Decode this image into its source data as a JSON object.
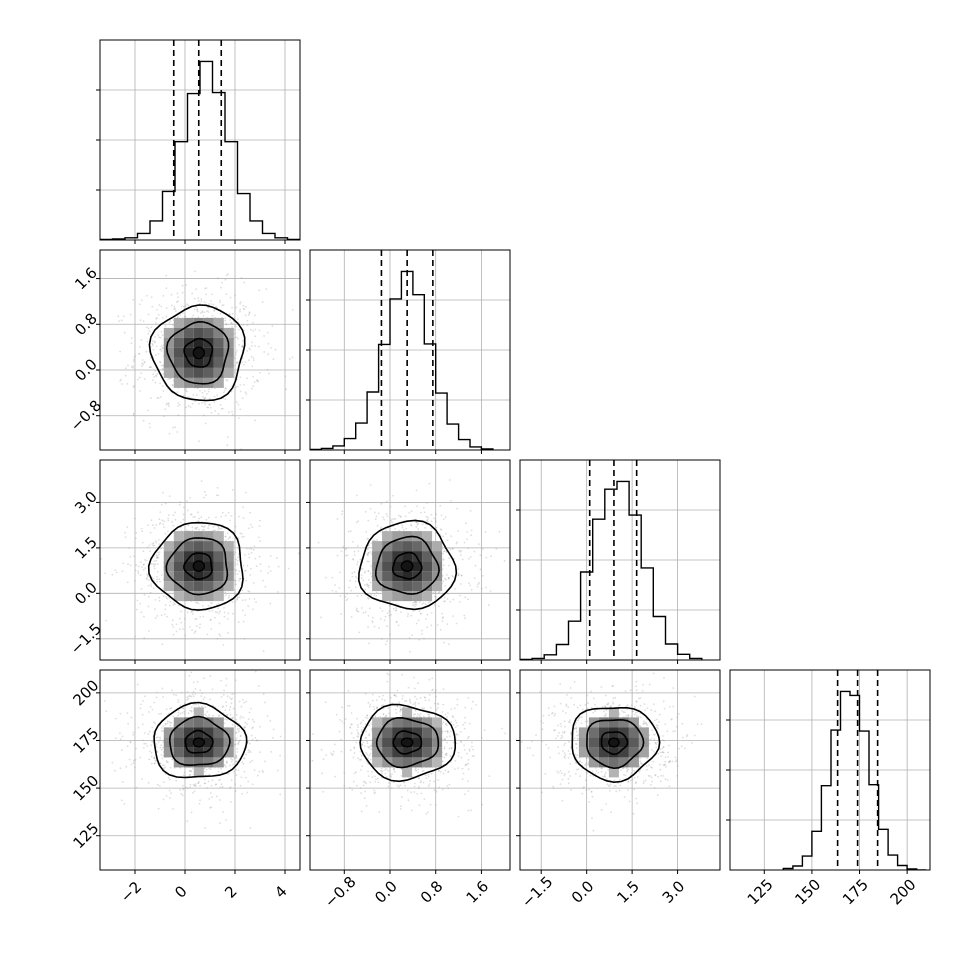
{
  "figure": {
    "kind": "corner plot",
    "colors": {
      "ink": "#000000",
      "grid": "#b0b0b0",
      "background": "#ffffff",
      "scatter": "#a0a0a0"
    }
  },
  "chart_data": [
    {
      "type": "histogram",
      "panel": "hist-param-1",
      "row": 0,
      "col": 0,
      "xlim": [
        -3.4,
        4.6
      ],
      "grid": true,
      "show_xtick_labels": false,
      "x_ticks": [
        {
          "v": -2,
          "label": "−2"
        },
        {
          "v": 0,
          "label": "0"
        },
        {
          "v": 2,
          "label": "2"
        },
        {
          "v": 4,
          "label": "4"
        }
      ],
      "bins": [
        -3.4,
        -2.9,
        -2.4,
        -1.9,
        -1.4,
        -0.9,
        -0.4,
        0.1,
        0.6,
        1.1,
        1.6,
        2.1,
        2.6,
        3.1,
        3.6,
        4.1,
        4.6
      ],
      "counts": [
        1,
        2,
        4,
        12,
        35,
        89,
        180,
        268,
        327,
        270,
        180,
        85,
        35,
        12,
        4,
        1
      ],
      "quantiles": [
        -0.45,
        0.55,
        1.45
      ]
    },
    {
      "type": "histogram",
      "panel": "hist-param-2",
      "row": 1,
      "col": 1,
      "xlim": [
        -1.4,
        2.1
      ],
      "grid": true,
      "show_xtick_labels": false,
      "x_ticks": [
        {
          "v": -0.8,
          "label": "−0.8"
        },
        {
          "v": 0.0,
          "label": "0.0"
        },
        {
          "v": 0.8,
          "label": "0.8"
        },
        {
          "v": 1.6,
          "label": "1.6"
        }
      ],
      "bins": [
        -1.4,
        -1.2,
        -1.0,
        -0.8,
        -0.6,
        -0.4,
        -0.2,
        0.0,
        0.2,
        0.4,
        0.6,
        0.8,
        1.0,
        1.2,
        1.4,
        1.6,
        1.8
      ],
      "counts": [
        1,
        3,
        8,
        22,
        52,
        112,
        204,
        292,
        345,
        300,
        205,
        110,
        50,
        20,
        6,
        2
      ],
      "quantiles": [
        -0.15,
        0.3,
        0.75
      ]
    },
    {
      "type": "histogram",
      "panel": "hist-param-3",
      "row": 2,
      "col": 2,
      "xlim": [
        -2.2,
        4.4
      ],
      "grid": true,
      "show_xtick_labels": false,
      "x_ticks": [
        {
          "v": -1.5,
          "label": "−1.5"
        },
        {
          "v": 0.0,
          "label": "0.0"
        },
        {
          "v": 1.5,
          "label": "1.5"
        },
        {
          "v": 3.0,
          "label": "3.0"
        }
      ],
      "bins": [
        -2.2,
        -1.8,
        -1.4,
        -1.0,
        -0.6,
        -0.2,
        0.2,
        0.6,
        1.0,
        1.4,
        1.8,
        2.2,
        2.6,
        3.0,
        3.4,
        3.8
      ],
      "counts": [
        1,
        3,
        10,
        30,
        75,
        170,
        272,
        330,
        345,
        280,
        178,
        84,
        31,
        11,
        3
      ],
      "quantiles": [
        0.1,
        0.9,
        1.65
      ]
    },
    {
      "type": "histogram",
      "panel": "hist-param-4",
      "row": 3,
      "col": 3,
      "xlim": [
        107,
        212
      ],
      "grid": true,
      "show_xtick_labels": true,
      "x_ticks": [
        {
          "v": 125,
          "label": "125"
        },
        {
          "v": 150,
          "label": "150"
        },
        {
          "v": 175,
          "label": "175"
        },
        {
          "v": 200,
          "label": "200"
        }
      ],
      "bins": [
        135,
        140,
        145,
        150,
        155,
        160,
        165,
        170,
        175,
        180,
        185,
        190,
        195,
        200,
        205,
        210
      ],
      "counts": [
        3,
        8,
        28,
        78,
        170,
        282,
        360,
        352,
        280,
        172,
        82,
        30,
        9,
        2,
        0
      ],
      "quantiles": [
        163.5,
        174,
        184.5
      ]
    },
    {
      "type": "scatter",
      "panel": "corner-2d-r1-c0",
      "row": 1,
      "col": 0,
      "xlim": [
        -3.4,
        4.6
      ],
      "ylim": [
        -1.4,
        2.1
      ],
      "grid": true,
      "x_ticks": [
        {
          "v": -2,
          "label": "−2"
        },
        {
          "v": 0,
          "label": "0"
        },
        {
          "v": 2,
          "label": "2"
        },
        {
          "v": 4,
          "label": "4"
        }
      ],
      "y_ticks": [
        {
          "v": -0.8,
          "label": "−0.8"
        },
        {
          "v": 0.0,
          "label": "0.0"
        },
        {
          "v": 0.8,
          "label": "0.8"
        },
        {
          "v": 1.6,
          "label": "1.6"
        }
      ],
      "center": [
        0.55,
        0.3
      ],
      "sd": [
        1.0,
        0.45
      ],
      "show_xtick_labels": false,
      "show_ytick_labels": true
    },
    {
      "type": "scatter",
      "panel": "corner-2d-r2-c0",
      "row": 2,
      "col": 0,
      "xlim": [
        -3.4,
        4.6
      ],
      "ylim": [
        -2.2,
        4.4
      ],
      "grid": true,
      "x_ticks": [
        {
          "v": -2,
          "label": "−2"
        },
        {
          "v": 0,
          "label": "0"
        },
        {
          "v": 2,
          "label": "2"
        },
        {
          "v": 4,
          "label": "4"
        }
      ],
      "y_ticks": [
        {
          "v": -1.5,
          "label": "−1.5"
        },
        {
          "v": 0.0,
          "label": "0.0"
        },
        {
          "v": 1.5,
          "label": "1.5"
        },
        {
          "v": 3.0,
          "label": "3.0"
        }
      ],
      "center": [
        0.55,
        0.9
      ],
      "sd": [
        1.0,
        0.78
      ],
      "show_xtick_labels": false,
      "show_ytick_labels": true
    },
    {
      "type": "scatter",
      "panel": "corner-2d-r2-c1",
      "row": 2,
      "col": 1,
      "xlim": [
        -1.4,
        2.1
      ],
      "ylim": [
        -2.2,
        4.4
      ],
      "grid": true,
      "x_ticks": [
        {
          "v": -0.8,
          "label": "−0.8"
        },
        {
          "v": 0.0,
          "label": "0.0"
        },
        {
          "v": 0.8,
          "label": "0.8"
        },
        {
          "v": 1.6,
          "label": "1.6"
        }
      ],
      "y_ticks": [
        {
          "v": -1.5,
          "label": "−1.5"
        },
        {
          "v": 0.0,
          "label": "0.0"
        },
        {
          "v": 1.5,
          "label": "1.5"
        },
        {
          "v": 3.0,
          "label": "3.0"
        }
      ],
      "center": [
        0.3,
        0.9
      ],
      "sd": [
        0.45,
        0.78
      ],
      "show_xtick_labels": false,
      "show_ytick_labels": false
    },
    {
      "type": "scatter",
      "panel": "corner-2d-r3-c0",
      "row": 3,
      "col": 0,
      "xlim": [
        -3.4,
        4.6
      ],
      "ylim": [
        107,
        212
      ],
      "grid": true,
      "x_ticks": [
        {
          "v": -2,
          "label": "−2"
        },
        {
          "v": 0,
          "label": "0"
        },
        {
          "v": 2,
          "label": "2"
        },
        {
          "v": 4,
          "label": "4"
        }
      ],
      "y_ticks": [
        {
          "v": 125,
          "label": "125"
        },
        {
          "v": 150,
          "label": "150"
        },
        {
          "v": 175,
          "label": "175"
        },
        {
          "v": 200,
          "label": "200"
        }
      ],
      "center": [
        0.55,
        174
      ],
      "sd": [
        1.0,
        10.5
      ],
      "show_xtick_labels": true,
      "show_ytick_labels": true
    },
    {
      "type": "scatter",
      "panel": "corner-2d-r3-c1",
      "row": 3,
      "col": 1,
      "xlim": [
        -1.4,
        2.1
      ],
      "ylim": [
        107,
        212
      ],
      "grid": true,
      "x_ticks": [
        {
          "v": -0.8,
          "label": "−0.8"
        },
        {
          "v": 0.0,
          "label": "0.0"
        },
        {
          "v": 0.8,
          "label": "0.8"
        },
        {
          "v": 1.6,
          "label": "1.6"
        }
      ],
      "y_ticks": [
        {
          "v": 125,
          "label": "125"
        },
        {
          "v": 150,
          "label": "150"
        },
        {
          "v": 175,
          "label": "175"
        },
        {
          "v": 200,
          "label": "200"
        }
      ],
      "center": [
        0.3,
        174
      ],
      "sd": [
        0.45,
        10.5
      ],
      "show_xtick_labels": true,
      "show_ytick_labels": false
    },
    {
      "type": "scatter",
      "panel": "corner-2d-r3-c2",
      "row": 3,
      "col": 2,
      "xlim": [
        -2.2,
        4.4
      ],
      "ylim": [
        107,
        212
      ],
      "grid": true,
      "x_ticks": [
        {
          "v": -1.5,
          "label": "−1.5"
        },
        {
          "v": 0.0,
          "label": "0.0"
        },
        {
          "v": 1.5,
          "label": "1.5"
        },
        {
          "v": 3.0,
          "label": "3.0"
        }
      ],
      "y_ticks": [
        {
          "v": 125,
          "label": "125"
        },
        {
          "v": 150,
          "label": "150"
        },
        {
          "v": 175,
          "label": "175"
        },
        {
          "v": 200,
          "label": "200"
        }
      ],
      "center": [
        0.9,
        174
      ],
      "sd": [
        0.78,
        10.5
      ],
      "show_xtick_labels": true,
      "show_ytick_labels": false
    }
  ]
}
